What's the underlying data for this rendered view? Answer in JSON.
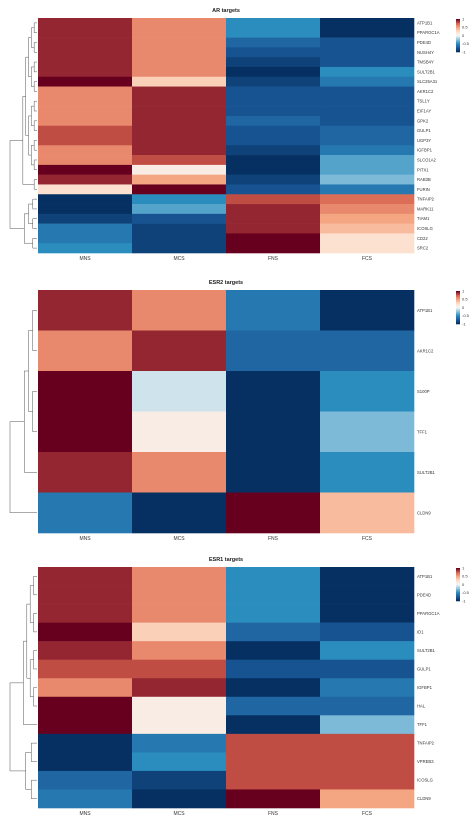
{
  "chart_data": [
    {
      "type": "heatmap",
      "title": "AR targets",
      "columns": [
        "MNS",
        "MCS",
        "FNS",
        "FCS"
      ],
      "rows": [
        "ATP1B1",
        "PPARGC1A",
        "PDE4D",
        "NUSH4Y",
        "TMSB4Y",
        "SULT2B1",
        "SLC25A31",
        "AKR1C2",
        "TSL1Y",
        "EIF1AY",
        "GPK2",
        "GULP1",
        "UGP3Y",
        "IGFBP1",
        "SLCO1A2",
        "PITX1",
        "RAB3B",
        "FURIN",
        "TNFAIP2",
        "MARK11",
        "TIAM1",
        "ICOSLG",
        "CD22",
        "SRC2"
      ],
      "values": [
        [
          0.9,
          0.6,
          -0.5,
          -1
        ],
        [
          0.9,
          0.6,
          -0.5,
          -1
        ],
        [
          0.9,
          0.6,
          -0.7,
          -0.8
        ],
        [
          0.9,
          0.6,
          -0.8,
          -0.8
        ],
        [
          0.9,
          0.6,
          -0.9,
          -0.8
        ],
        [
          0.9,
          0.6,
          -1,
          -0.5
        ],
        [
          1,
          0.3,
          -0.9,
          -0.6
        ],
        [
          0.6,
          0.9,
          -0.8,
          -0.8
        ],
        [
          0.6,
          0.9,
          -0.8,
          -0.8
        ],
        [
          0.6,
          0.9,
          -0.8,
          -0.8
        ],
        [
          0.6,
          0.9,
          -0.7,
          -0.8
        ],
        [
          0.8,
          0.9,
          -0.8,
          -0.7
        ],
        [
          0.8,
          0.9,
          -0.8,
          -0.7
        ],
        [
          0.6,
          0.9,
          -0.9,
          -0.6
        ],
        [
          0.6,
          0.8,
          -1,
          -0.4
        ],
        [
          1,
          0.1,
          -1,
          -0.4
        ],
        [
          0.9,
          0.5,
          -0.9,
          -0.3
        ],
        [
          0.2,
          1,
          -0.8,
          -0.6
        ],
        [
          -1,
          -0.5,
          0.8,
          0.7
        ],
        [
          -1,
          -0.4,
          0.9,
          0.6
        ],
        [
          -0.9,
          -0.8,
          0.9,
          0.5
        ],
        [
          -0.6,
          -0.9,
          0.9,
          0.4
        ],
        [
          -0.6,
          -0.9,
          1,
          0.2
        ],
        [
          -0.5,
          -0.9,
          1,
          0.2
        ]
      ],
      "color_scale": {
        "min": -1,
        "max": 1,
        "ticks": [
          1,
          0.5,
          0,
          -0.5,
          -1
        ],
        "low": "#053061",
        "mid": "#f7f7f7",
        "high": "#67001f"
      }
    },
    {
      "type": "heatmap",
      "title": "ESR2 targets",
      "columns": [
        "MNS",
        "MCS",
        "FNS",
        "FCS"
      ],
      "rows": [
        "ATP1B1",
        "AKR1C2",
        "S100P",
        "TFF1",
        "SULT2B1",
        "CLDN9"
      ],
      "values": [
        [
          0.9,
          0.6,
          -0.6,
          -1
        ],
        [
          0.6,
          0.9,
          -0.7,
          -0.7
        ],
        [
          1,
          -0.1,
          -1,
          -0.5
        ],
        [
          1,
          0.1,
          -1,
          -0.3
        ],
        [
          0.9,
          0.6,
          -1,
          -0.5
        ],
        [
          -0.6,
          -1,
          1,
          0.4
        ]
      ],
      "color_scale": {
        "min": -1,
        "max": 1,
        "ticks": [
          1,
          0.5,
          0,
          -0.5,
          -1
        ],
        "low": "#053061",
        "mid": "#f7f7f7",
        "high": "#67001f"
      }
    },
    {
      "type": "heatmap",
      "title": "ESR1 targets",
      "columns": [
        "MNS",
        "MCS",
        "FNS",
        "FCS"
      ],
      "rows": [
        "ATP1B1",
        "PDE4D",
        "PPARGC1A",
        "ID1",
        "SULT2B1",
        "GULP1",
        "IGFBP1",
        "HAL",
        "TFF1",
        "TNFAIP2",
        "VPREB3",
        "ICOSLG",
        "CLDN9"
      ],
      "values": [
        [
          0.9,
          0.6,
          -0.5,
          -1
        ],
        [
          0.9,
          0.6,
          -0.5,
          -1
        ],
        [
          0.9,
          0.6,
          -0.5,
          -1
        ],
        [
          1,
          0.3,
          -0.7,
          -0.8
        ],
        [
          0.9,
          0.6,
          -1,
          -0.5
        ],
        [
          0.8,
          0.8,
          -0.8,
          -0.8
        ],
        [
          0.6,
          0.9,
          -1,
          -0.6
        ],
        [
          1,
          0.1,
          -0.7,
          -0.7
        ],
        [
          1,
          0.1,
          -1,
          -0.3
        ],
        [
          -1,
          -0.6,
          0.8,
          0.8
        ],
        [
          -1,
          -0.5,
          0.8,
          0.8
        ],
        [
          -0.7,
          -0.9,
          0.8,
          0.8
        ],
        [
          -0.6,
          -1,
          1,
          0.5
        ]
      ],
      "color_scale": {
        "min": -1,
        "max": 1,
        "ticks": [
          1,
          0.5,
          0,
          -0.5,
          -1
        ],
        "low": "#053061",
        "mid": "#f7f7f7",
        "high": "#67001f"
      }
    }
  ]
}
